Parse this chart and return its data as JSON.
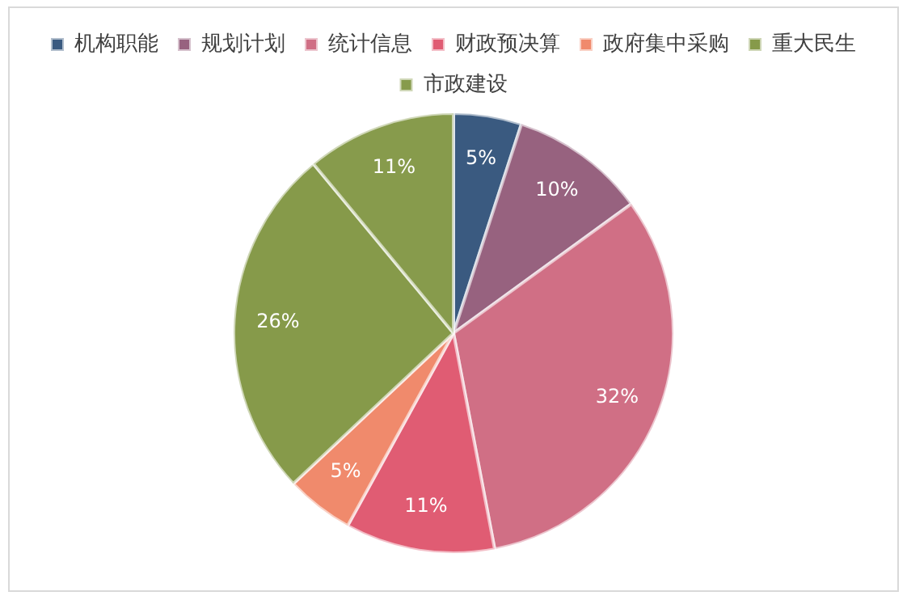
{
  "chart_data": {
    "type": "pie",
    "categories": [
      "机构职能",
      "规划计划",
      "统计信息",
      "财政预决算",
      "政府集中采购",
      "重大民生",
      "市政建设"
    ],
    "values": [
      5,
      10,
      32,
      11,
      5,
      26,
      11
    ],
    "colors": [
      "#3a5a80",
      "#97627f",
      "#d06f85",
      "#e05c73",
      "#f08a6c",
      "#869a4a",
      "#879b4c"
    ],
    "value_labels": [
      "5%",
      "10%",
      "32%",
      "11%",
      "5%",
      "26%",
      "11%"
    ],
    "legend": "top"
  }
}
